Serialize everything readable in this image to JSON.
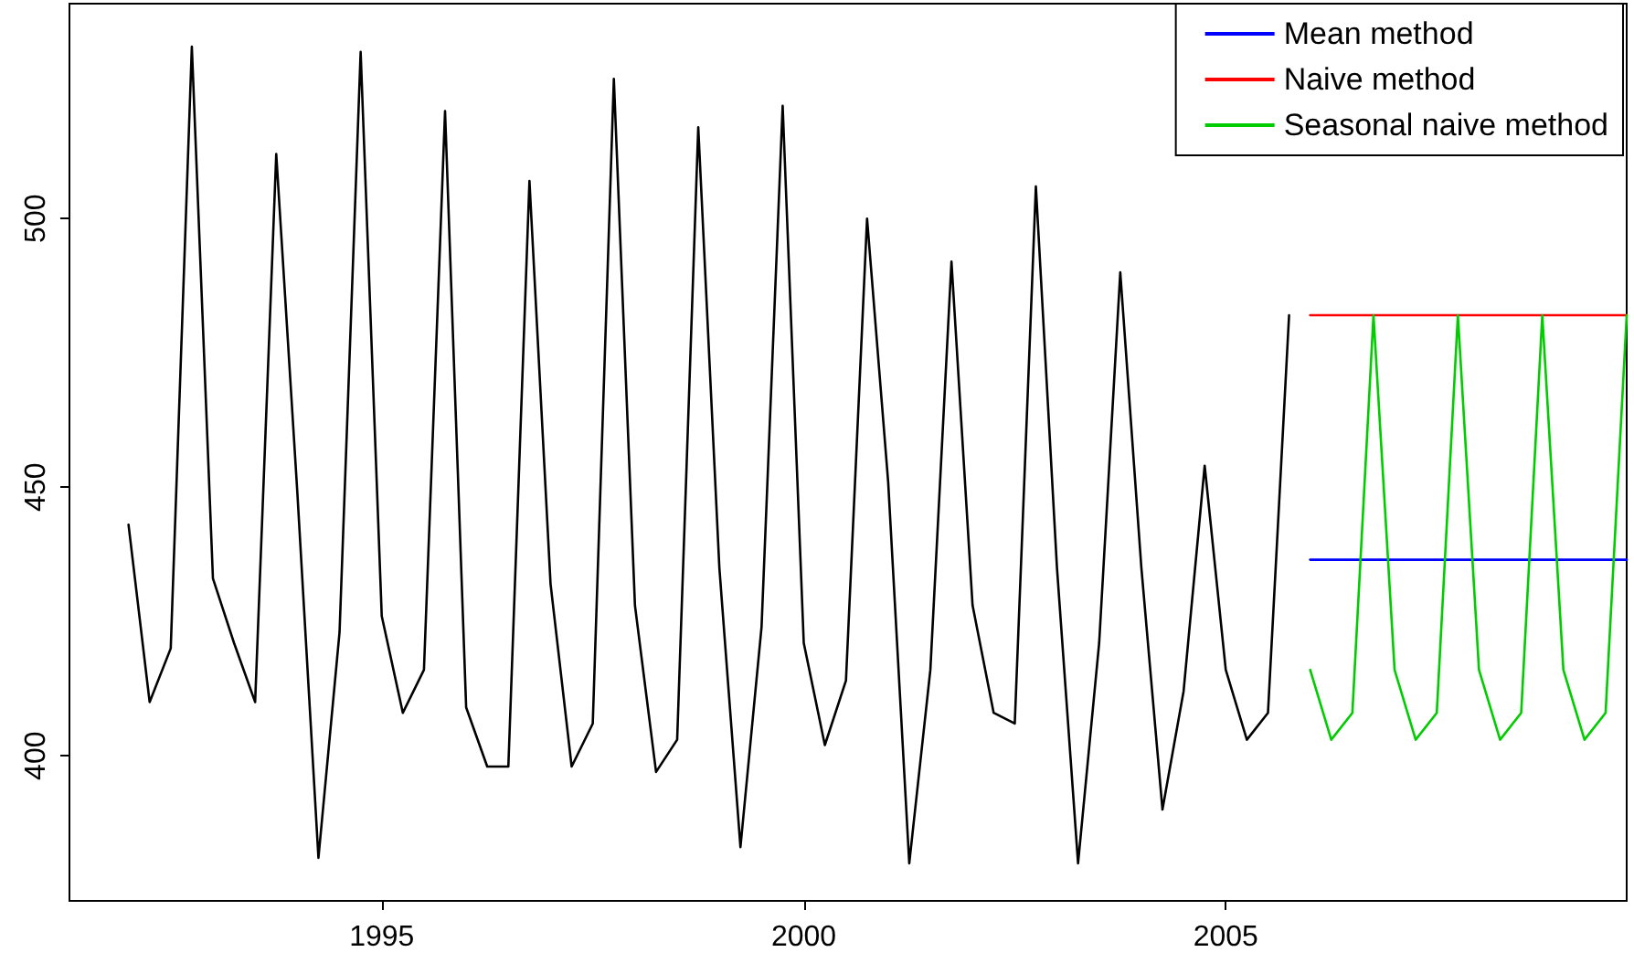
{
  "chart_data": {
    "type": "line",
    "xlim": [
      1991.3,
      2009.75
    ],
    "xticks": [
      1995,
      2000,
      2005
    ],
    "ylim": [
      373,
      540
    ],
    "yticks": [
      400,
      450,
      500
    ],
    "grid": false,
    "legend": "top right",
    "marker": "none",
    "line_style": "solid",
    "series": [
      {
        "color": "#000000",
        "x": [
          1992,
          1992.25,
          1992.5,
          1992.75,
          1993,
          1993.25,
          1993.5,
          1993.75,
          1994,
          1994.25,
          1994.5,
          1994.75,
          1995,
          1995.25,
          1995.5,
          1995.75,
          1996,
          1996.25,
          1996.5,
          1996.75,
          1997,
          1997.25,
          1997.5,
          1997.75,
          1998,
          1998.25,
          1998.5,
          1998.75,
          1999,
          1999.25,
          1999.5,
          1999.75,
          2000,
          2000.25,
          2000.5,
          2000.75,
          2001,
          2001.25,
          2001.5,
          2001.75,
          2002,
          2002.25,
          2002.5,
          2002.75,
          2003,
          2003.25,
          2003.5,
          2003.75,
          2004,
          2004.25,
          2004.5,
          2004.75,
          2005,
          2005.25,
          2005.5,
          2005.75
        ],
        "values": [
          443,
          410,
          420,
          532,
          433,
          421,
          410,
          512,
          449,
          381,
          423,
          531,
          426,
          408,
          416,
          520,
          409,
          398,
          398,
          507,
          432,
          398,
          406,
          526,
          428,
          397,
          403,
          517,
          435,
          383,
          424,
          521,
          421,
          402,
          414,
          500,
          451,
          380,
          416,
          492,
          428,
          408,
          406,
          506,
          435,
          380,
          421,
          490,
          435,
          390,
          412,
          454,
          416,
          403,
          408,
          482
        ]
      },
      {
        "name": "Mean method",
        "color": "#0000ff",
        "x": [
          2006,
          2009.75
        ],
        "values": [
          436.5,
          436.5
        ]
      },
      {
        "name": "Naive method",
        "color": "#ff0000",
        "x": [
          2006,
          2009.75
        ],
        "values": [
          482,
          482
        ]
      },
      {
        "name": "Seasonal naive method",
        "color": "#00cc00",
        "x": [
          2006,
          2006.25,
          2006.5,
          2006.75,
          2007,
          2007.25,
          2007.5,
          2007.75,
          2008,
          2008.25,
          2008.5,
          2008.75,
          2009,
          2009.25,
          2009.5,
          2009.75
        ],
        "values": [
          416,
          403,
          408,
          482,
          416,
          403,
          408,
          482,
          416,
          403,
          408,
          482,
          416,
          403,
          408,
          482
        ]
      }
    ]
  }
}
